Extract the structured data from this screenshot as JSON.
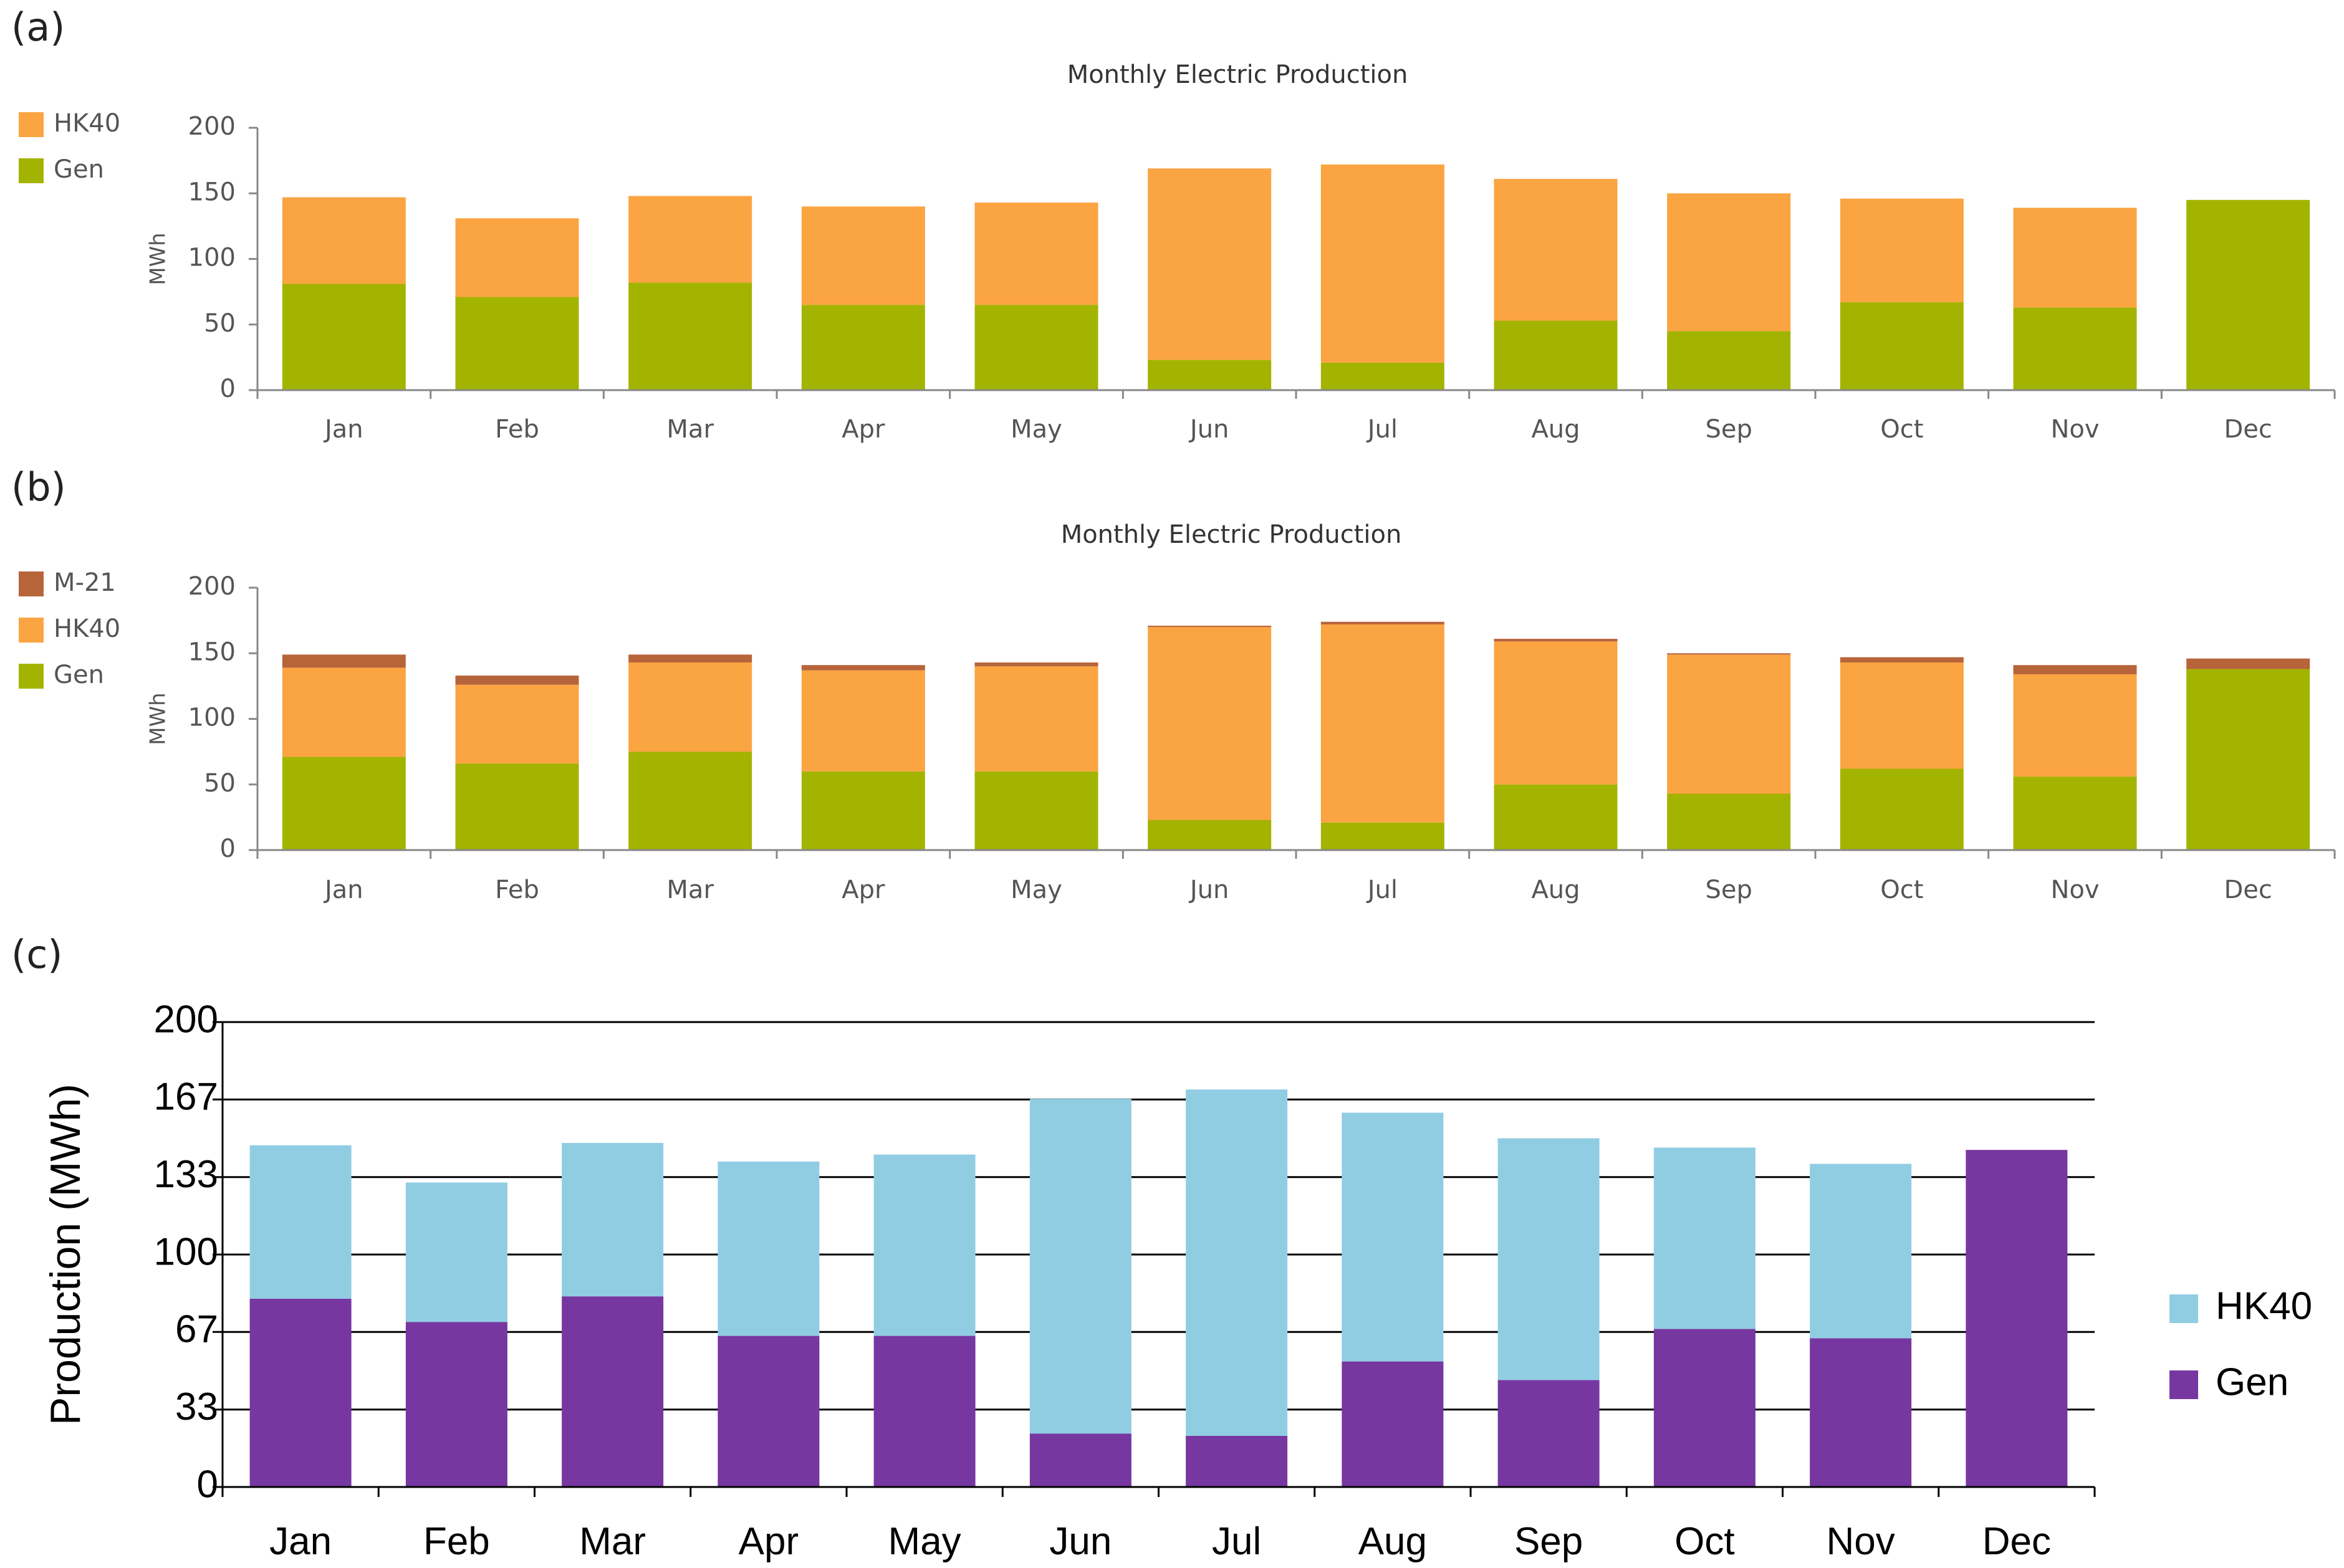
{
  "chart_data": [
    {
      "panel": "(a)",
      "type": "bar",
      "stacked": true,
      "title": "Monthly Electric Production",
      "ylabel": "MWh",
      "xlabel": "",
      "ylim": [
        0,
        200
      ],
      "yticks": [
        0,
        50,
        100,
        150,
        200
      ],
      "yticklabels": [
        "0",
        "50",
        "100",
        "150",
        "200"
      ],
      "categories": [
        "Jan",
        "Feb",
        "Mar",
        "Apr",
        "May",
        "Jun",
        "Jul",
        "Aug",
        "Sep",
        "Oct",
        "Nov",
        "Dec"
      ],
      "series": [
        {
          "name": "Gen",
          "color": "#a3b400",
          "values": [
            81,
            71,
            82,
            65,
            65,
            23,
            21,
            53,
            45,
            67,
            63,
            145
          ]
        },
        {
          "name": "HK40",
          "color": "#fba442",
          "values": [
            66,
            60,
            66,
            75,
            78,
            146,
            151,
            108,
            105,
            79,
            76,
            0
          ]
        }
      ],
      "legend": [
        "HK40",
        "Gen"
      ],
      "legend_position": "left"
    },
    {
      "panel": "(b)",
      "type": "bar",
      "stacked": true,
      "title": "Monthly Electric Production",
      "ylabel": "MWh",
      "xlabel": "",
      "ylim": [
        0,
        200
      ],
      "yticks": [
        0,
        50,
        100,
        150,
        200
      ],
      "yticklabels": [
        "0",
        "50",
        "100",
        "150",
        "200"
      ],
      "categories": [
        "Jan",
        "Feb",
        "Mar",
        "Apr",
        "May",
        "Jun",
        "Jul",
        "Aug",
        "Sep",
        "Oct",
        "Nov",
        "Dec"
      ],
      "series": [
        {
          "name": "Gen",
          "color": "#a3b400",
          "values": [
            71,
            66,
            75,
            60,
            60,
            23,
            21,
            50,
            43,
            62,
            56,
            138
          ]
        },
        {
          "name": "HK40",
          "color": "#fba442",
          "values": [
            68,
            60,
            68,
            77,
            80,
            147,
            151,
            109,
            106,
            81,
            78,
            0
          ]
        },
        {
          "name": "M-21",
          "color": "#b8643a",
          "values": [
            10,
            7,
            6,
            4,
            3,
            1,
            2,
            2,
            1,
            4,
            7,
            8
          ]
        }
      ],
      "legend": [
        "M-21",
        "HK40",
        "Gen"
      ],
      "legend_position": "left"
    },
    {
      "panel": "(c)",
      "type": "bar",
      "stacked": true,
      "title": "",
      "ylabel": "Production (MWh)",
      "xlabel": "",
      "ylim": [
        0,
        200
      ],
      "yticks": [
        0,
        33.3,
        66.7,
        100,
        133.3,
        166.7,
        200
      ],
      "yticklabels": [
        "0",
        "33",
        "67",
        "100",
        "133",
        "167",
        "200"
      ],
      "categories": [
        "Jan",
        "Feb",
        "Mar",
        "Apr",
        "May",
        "Jun",
        "Jul",
        "Aug",
        "Sep",
        "Oct",
        "Nov",
        "Dec"
      ],
      "series": [
        {
          "name": "Gen",
          "color": "#7637a0",
          "values": [
            81,
            71,
            82,
            65,
            65,
            23,
            22,
            54,
            46,
            68,
            64,
            145
          ]
        },
        {
          "name": "HK40",
          "color": "#90cde3",
          "values": [
            66,
            60,
            66,
            75,
            78,
            144,
            149,
            107,
            104,
            78,
            75,
            0
          ]
        }
      ],
      "legend": [
        "HK40",
        "Gen"
      ],
      "legend_position": "right",
      "grid": true
    }
  ]
}
